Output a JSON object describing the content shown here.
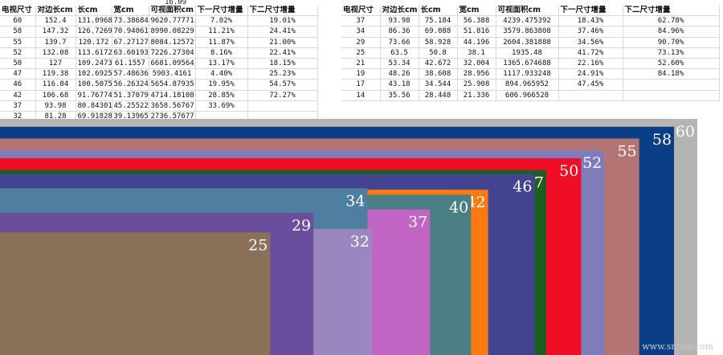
{
  "stray_value": "16.09",
  "headers": [
    "电视尺寸",
    "对边长cm",
    "长cm",
    "宽cm",
    "可视面积cm",
    "下一尺寸增量",
    "下二尺寸增量"
  ],
  "left_rows": [
    [
      "60",
      "152.4",
      "131.0968",
      "73.38684",
      "9620.77771",
      "7.02%",
      "19.01%"
    ],
    [
      "58",
      "147.32",
      "126.7269",
      "70.94061",
      "8990.08229",
      "11.21%",
      "24.41%"
    ],
    [
      "55",
      "139.7",
      "120.172",
      "67.27127",
      "8084.12572",
      "11.87%",
      "21.00%"
    ],
    [
      "52",
      "132.08",
      "113.6172",
      "63.60193",
      "7226.27304",
      "8.16%",
      "22.41%"
    ],
    [
      "50",
      "127",
      "109.2473",
      "61.1557",
      "6681.09564",
      "13.17%",
      "18.15%"
    ],
    [
      "47",
      "119.38",
      "102.6925",
      "57.48636",
      "5903.4161",
      "4.40%",
      "25.23%"
    ],
    [
      "46",
      "116.84",
      "100.5075",
      "56.26324",
      "5654.87935",
      "19.95%",
      "54.57%"
    ],
    [
      "42",
      "106.68",
      "91.76774",
      "51.37079",
      "4714.18108",
      "28.85%",
      "72.27%"
    ],
    [
      "37",
      "93.98",
      "80.84301",
      "45.25522",
      "3658.56767",
      "33.69%",
      ""
    ],
    [
      "32",
      "81.28",
      "69.91828",
      "39.13965",
      "2736.57677",
      "",
      ""
    ]
  ],
  "right_rows": [
    [
      "37",
      "93.98",
      "75.184",
      "56.388",
      "4239.475392",
      "18.43%",
      "62.78%"
    ],
    [
      "34",
      "86.36",
      "69.088",
      "51.816",
      "3579.863808",
      "37.46%",
      "84.96%"
    ],
    [
      "29",
      "73.66",
      "58.928",
      "44.196",
      "2604.381888",
      "34.56%",
      "90.70%"
    ],
    [
      "25",
      "63.5",
      "50.8",
      "38.1",
      "1935.48",
      "41.72%",
      "73.13%"
    ],
    [
      "21",
      "53.34",
      "42.672",
      "32.004",
      "1365.674688",
      "22.16%",
      "52.60%"
    ],
    [
      "19",
      "48.26",
      "38.608",
      "28.956",
      "1117.933248",
      "24.91%",
      "84.18%"
    ],
    [
      "17",
      "43.18",
      "34.544",
      "25.908",
      "894.965952",
      "47.45%",
      ""
    ],
    [
      "14",
      "35.56",
      "28.448",
      "21.336",
      "606.966528",
      "",
      ""
    ]
  ],
  "watermark": "www.snren.com",
  "chart_data": {
    "type": "area",
    "note_unit_width": "cm",
    "screens": [
      {
        "label": "60",
        "width_cm": 131.0968,
        "height_cm": 73.38684,
        "color": "#b4b4b4"
      },
      {
        "label": "58",
        "width_cm": 126.7269,
        "height_cm": 70.94061,
        "color": "#0a3f86"
      },
      {
        "label": "55",
        "width_cm": 120.172,
        "height_cm": 67.27127,
        "color": "#b47473"
      },
      {
        "label": "52",
        "width_cm": 113.6172,
        "height_cm": 63.60193,
        "color": "#7e7cba"
      },
      {
        "label": "50",
        "width_cm": 109.2473,
        "height_cm": 61.1557,
        "color": "#f20d26"
      },
      {
        "label": "47",
        "width_cm": 102.6925,
        "height_cm": 57.48636,
        "color": "#1f5e23"
      },
      {
        "label": "46",
        "width_cm": 100.5075,
        "height_cm": 56.26324,
        "color": "#424490"
      },
      {
        "label": "42",
        "width_cm": 91.76774,
        "height_cm": 51.37079,
        "color": "#fb7a13"
      },
      {
        "label": "40",
        "width_cm": 88.55,
        "height_cm": 49.8,
        "color": "#4a7f83"
      },
      {
        "label": "37",
        "width_cm": 80.84301,
        "height_cm": 45.25522,
        "color": "#c165c5"
      },
      {
        "label": "34",
        "width_cm": 69.088,
        "height_cm": 51.816,
        "color": "#4f7fa0"
      },
      {
        "label": "32",
        "width_cm": 69.91828,
        "height_cm": 39.13965,
        "color": "#9a87bf"
      },
      {
        "label": "29",
        "width_cm": 58.928,
        "height_cm": 44.196,
        "color": "#6a4d9c"
      },
      {
        "label": "25",
        "width_cm": 50.8,
        "height_cm": 38.1,
        "color": "#8a7057"
      }
    ]
  }
}
